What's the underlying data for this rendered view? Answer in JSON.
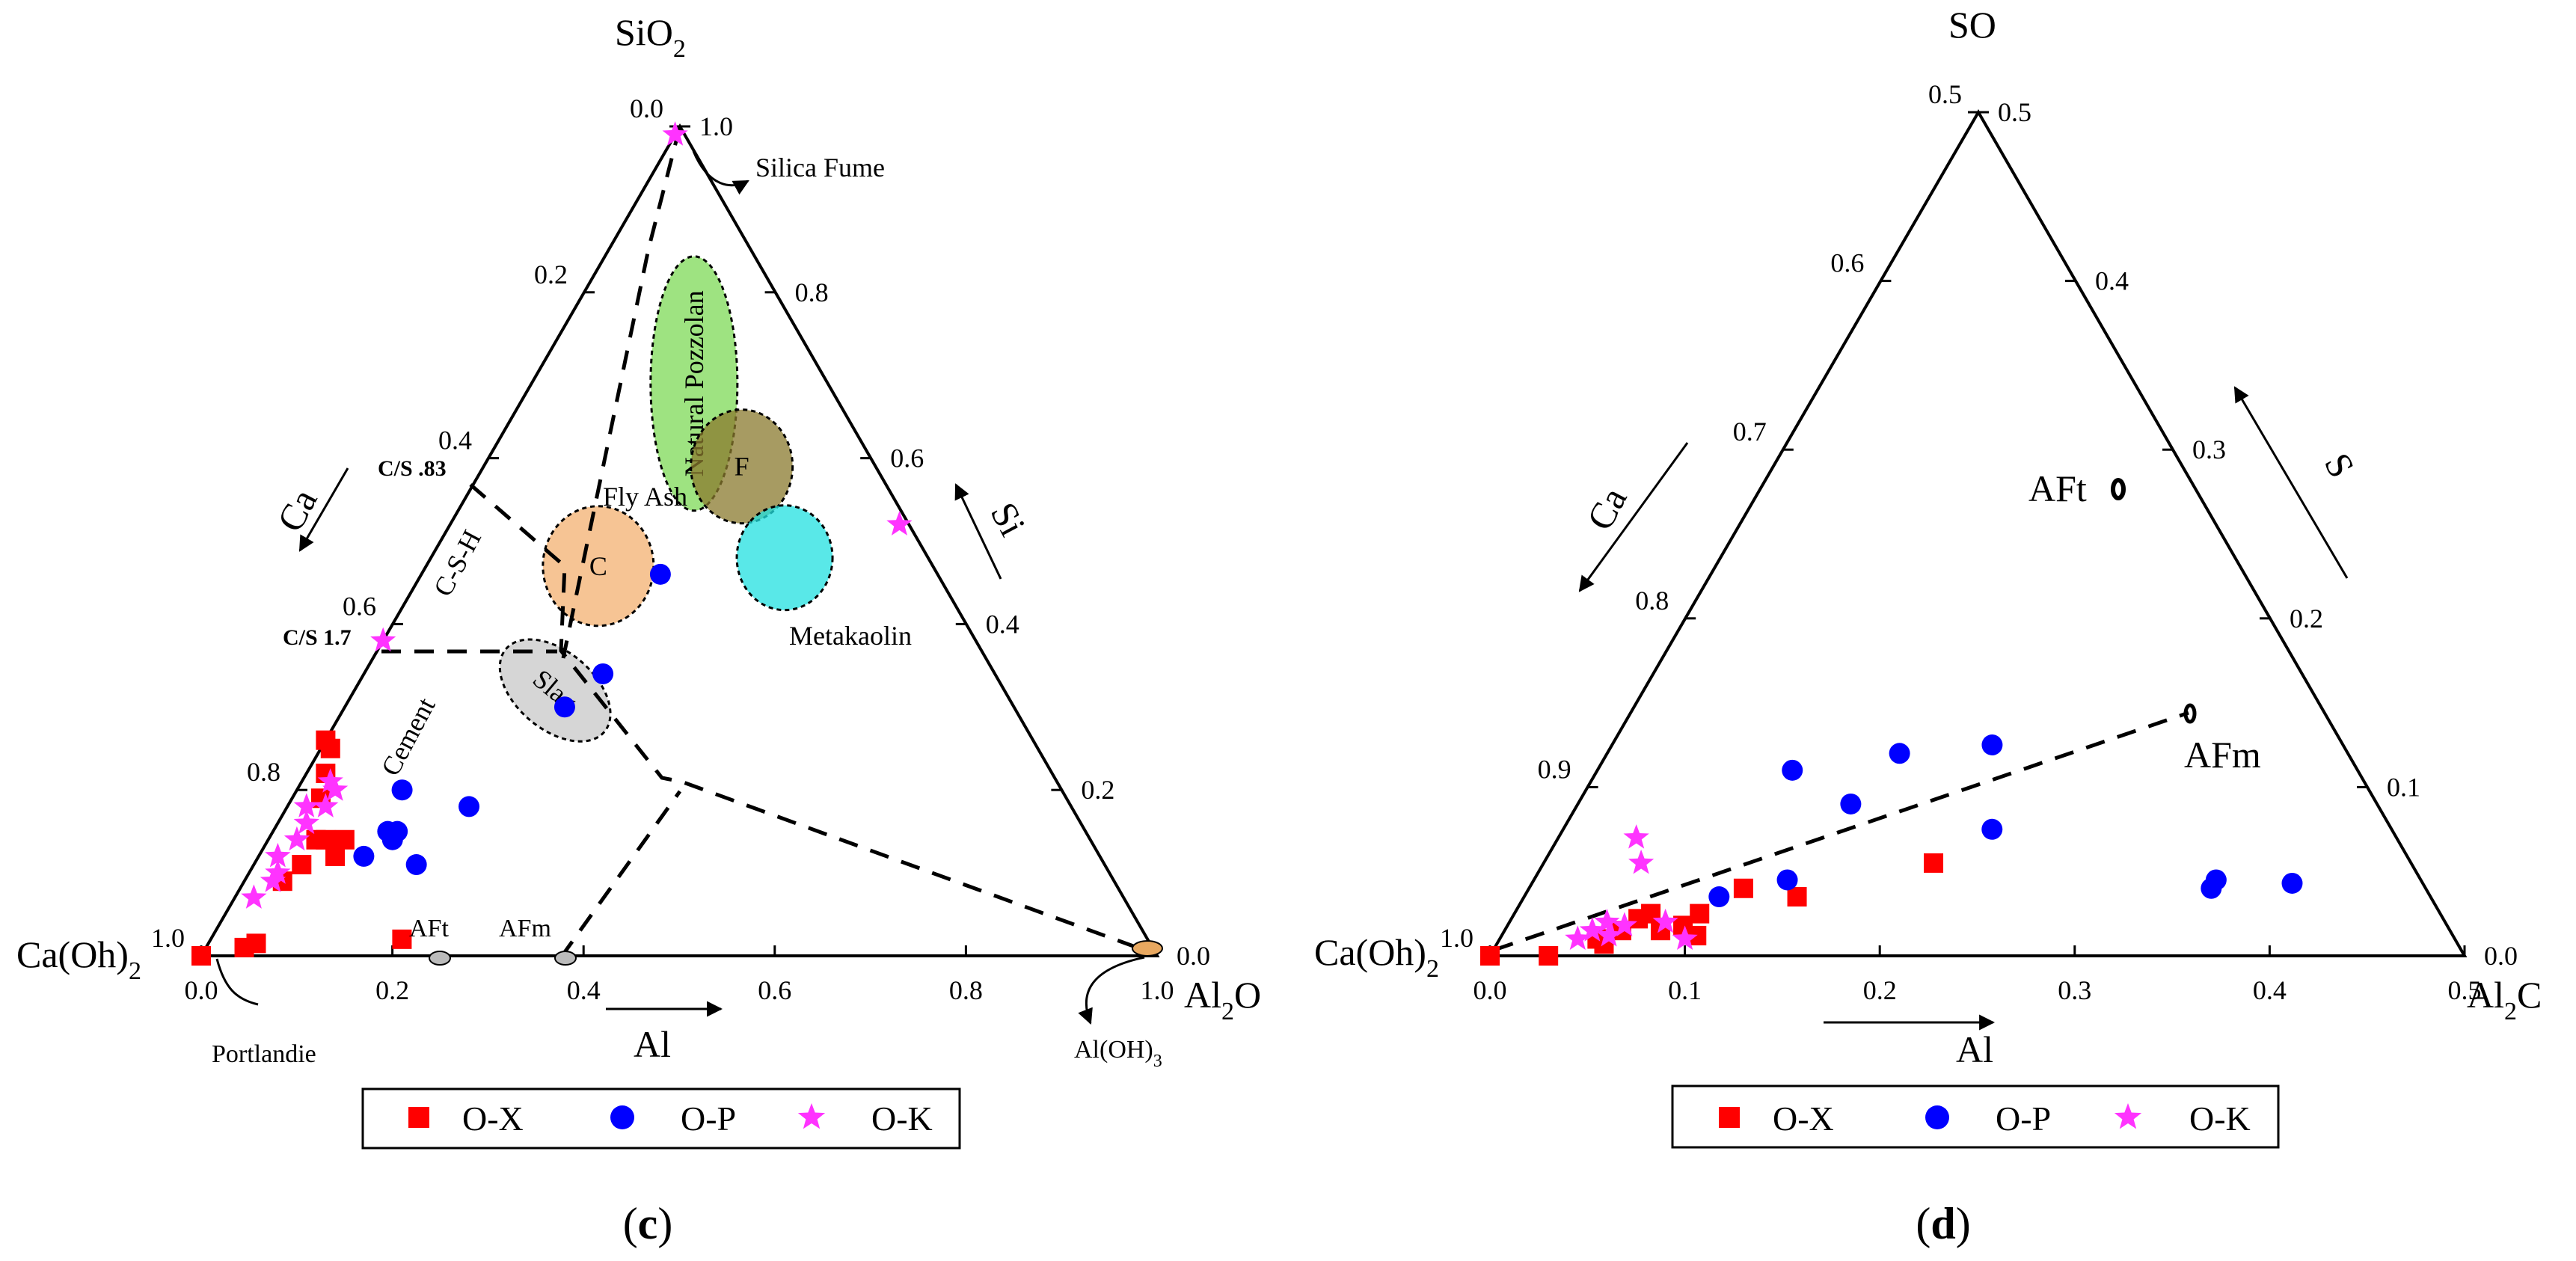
{
  "legend": {
    "items": [
      {
        "name": "O-X",
        "marker": "square",
        "color": "#ff0000"
      },
      {
        "name": "O-P",
        "marker": "circle",
        "color": "#0000ff"
      },
      {
        "name": "O-K",
        "marker": "star",
        "color": "#ff33ff"
      }
    ]
  },
  "chart_data": [
    {
      "type": "ternary-scatter",
      "panel_label": "c",
      "vertices": {
        "top": "SiO2",
        "left": "Ca(Oh)2",
        "right": "Al2O"
      },
      "vertex_labels": {
        "top": "SiO",
        "top_sub": "2",
        "left": "Ca(Oh)",
        "left_sub": "2",
        "right": "Al",
        "right_sub": "2",
        "right_tail": "O"
      },
      "axis_titles": {
        "left": "Ca",
        "right": "Si",
        "bottom": "Al"
      },
      "ticks": {
        "left": [
          "0.0",
          "0.2",
          "0.4",
          "0.6",
          "0.8",
          "1.0"
        ],
        "right": [
          "1.0",
          "0.8",
          "0.6",
          "0.4",
          "0.2",
          "0.0"
        ],
        "bottom": [
          "0.0",
          "0.2",
          "0.4",
          "0.6",
          "0.8",
          "1.0"
        ]
      },
      "regions": [
        {
          "name": "Natural Pozzolan",
          "label": "Natural Pozzolan",
          "color": "#7ed957",
          "center": {
            "al": 0.17,
            "si": 0.69
          }
        },
        {
          "name": "F",
          "label": "F",
          "color": "#8a7a2e",
          "center": {
            "al": 0.27,
            "si": 0.59
          }
        },
        {
          "name": "Metakaolin",
          "label": "",
          "color": "#22e0e0",
          "center": {
            "al": 0.37,
            "si": 0.48
          }
        },
        {
          "name": "C",
          "label": "C",
          "color": "#f3b070",
          "center": {
            "al": 0.18,
            "si": 0.47
          }
        },
        {
          "name": "Slag",
          "label": "Slag",
          "color": "#c8c8c8",
          "center": {
            "al": 0.21,
            "si": 0.32
          }
        }
      ],
      "annotations": {
        "silica_fume": "Silica Fume",
        "fly_ash": "Fly Ash",
        "metakaolin": "Metakaolin",
        "csh": "C-S-H",
        "cement": "Cement",
        "cs_083": "C/S .83",
        "cs_17": "C/S 1.7",
        "aft": "AFt",
        "afm": "AFm",
        "portlandite": "Portlandie",
        "aloh3": "Al(OH)",
        "aloh3_sub": "3"
      },
      "series": [
        {
          "name": "O-X",
          "marker": "square",
          "points": [
            {
              "al": 0.0,
              "si": 0.0
            },
            {
              "al": 0.04,
              "si": 0.01
            },
            {
              "al": 0.05,
              "si": 0.015
            },
            {
              "al": 0.0,
              "si": 0.26
            },
            {
              "al": 0.01,
              "si": 0.25
            },
            {
              "al": 0.02,
              "si": 0.22
            },
            {
              "al": 0.03,
              "si": 0.19
            },
            {
              "al": 0.05,
              "si": 0.14
            },
            {
              "al": 0.06,
              "si": 0.14
            },
            {
              "al": 0.08,
              "si": 0.14
            },
            {
              "al": 0.08,
              "si": 0.12
            },
            {
              "al": 0.05,
              "si": 0.11
            },
            {
              "al": 0.04,
              "si": 0.09
            },
            {
              "al": 0.2,
              "si": 0.02
            }
          ]
        },
        {
          "name": "O-P",
          "marker": "circle",
          "points": [
            {
              "al": 0.25,
              "si": 0.46
            },
            {
              "al": 0.25,
              "si": 0.34
            },
            {
              "al": 0.23,
              "si": 0.3
            },
            {
              "al": 0.11,
              "si": 0.2
            },
            {
              "al": 0.19,
              "si": 0.18
            },
            {
              "al": 0.12,
              "si": 0.15
            },
            {
              "al": 0.13,
              "si": 0.15
            },
            {
              "al": 0.13,
              "si": 0.14
            },
            {
              "al": 0.11,
              "si": 0.12
            },
            {
              "al": 0.17,
              "si": 0.11
            }
          ]
        },
        {
          "name": "O-K",
          "marker": "star",
          "points": [
            {
              "al": 0.47,
              "si": 0.52
            },
            {
              "al": 0.0,
              "si": 0.38
            },
            {
              "al": 0.03,
              "si": 0.21
            },
            {
              "al": 0.04,
              "si": 0.2
            },
            {
              "al": 0.04,
              "si": 0.18
            },
            {
              "al": 0.02,
              "si": 0.18
            },
            {
              "al": 0.03,
              "si": 0.16
            },
            {
              "al": 0.03,
              "si": 0.14
            },
            {
              "al": 0.02,
              "si": 0.12
            },
            {
              "al": 0.03,
              "si": 0.1
            },
            {
              "al": 0.02,
              "si": 0.07
            },
            {
              "al": 0.03,
              "si": 0.09
            },
            {
              "al": 0.0,
              "si": 0.99
            }
          ]
        }
      ]
    },
    {
      "type": "ternary-scatter",
      "panel_label": "d",
      "vertices": {
        "top": "SO",
        "left": "Ca(Oh)2",
        "right": "Al2C"
      },
      "vertex_labels": {
        "top": "SO",
        "left": "Ca(Oh)",
        "left_sub": "2",
        "right": "Al",
        "right_sub": "2",
        "right_tail": "C"
      },
      "axis_titles": {
        "left": "Ca",
        "right": "S",
        "bottom": "Al"
      },
      "ticks": {
        "left": [
          "0.5",
          "0.6",
          "0.7",
          "0.8",
          "0.9",
          "1.0"
        ],
        "right": [
          "0.5",
          "0.4",
          "0.3",
          "0.2",
          "0.1",
          "0.0"
        ],
        "bottom": [
          "0.0",
          "0.1",
          "0.2",
          "0.3",
          "0.4",
          "0.5"
        ]
      },
      "annotations": {
        "aft": "AFt",
        "afm": "AFm"
      },
      "series": [
        {
          "name": "O-X",
          "marker": "square",
          "points": [
            {
              "al": 0.0,
              "s": 0.0
            },
            {
              "al": 0.03,
              "s": 0.0
            },
            {
              "al": 0.05,
              "s": 0.01
            },
            {
              "al": 0.055,
              "s": 0.007
            },
            {
              "al": 0.06,
              "s": 0.015
            },
            {
              "al": 0.065,
              "s": 0.022
            },
            {
              "al": 0.07,
              "s": 0.025
            },
            {
              "al": 0.08,
              "s": 0.015
            },
            {
              "al": 0.09,
              "s": 0.018
            },
            {
              "al": 0.1,
              "s": 0.012
            },
            {
              "al": 0.095,
              "s": 0.025
            },
            {
              "al": 0.11,
              "s": 0.04
            },
            {
              "al": 0.14,
              "s": 0.035
            },
            {
              "al": 0.2,
              "s": 0.055
            }
          ]
        },
        {
          "name": "O-P",
          "marker": "circle",
          "points": [
            {
              "al": 0.1,
              "s": 0.11
            },
            {
              "al": 0.15,
              "s": 0.12
            },
            {
              "al": 0.195,
              "s": 0.125
            },
            {
              "al": 0.14,
              "s": 0.09
            },
            {
              "al": 0.22,
              "s": 0.075
            },
            {
              "al": 0.13,
              "s": 0.045
            },
            {
              "al": 0.1,
              "s": 0.035
            },
            {
              "al": 0.35,
              "s": 0.045
            },
            {
              "al": 0.35,
              "s": 0.04
            },
            {
              "al": 0.39,
              "s": 0.043
            }
          ]
        },
        {
          "name": "O-K",
          "marker": "star",
          "points": [
            {
              "al": 0.04,
              "s": 0.07
            },
            {
              "al": 0.05,
              "s": 0.055
            },
            {
              "al": 0.04,
              "s": 0.01
            },
            {
              "al": 0.05,
              "s": 0.02
            },
            {
              "al": 0.06,
              "s": 0.018
            },
            {
              "al": 0.045,
              "s": 0.015
            },
            {
              "al": 0.055,
              "s": 0.012
            },
            {
              "al": 0.095,
              "s": 0.01
            },
            {
              "al": 0.08,
              "s": 0.02
            }
          ]
        }
      ]
    }
  ]
}
